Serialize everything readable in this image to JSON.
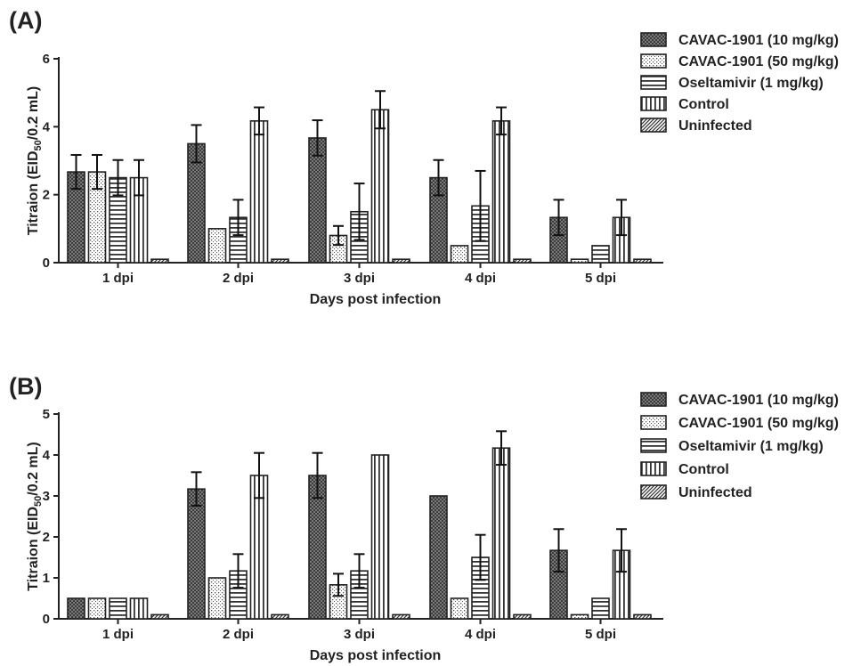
{
  "chart_data": [
    {
      "type": "bar",
      "panel_label": "(A)",
      "title": "",
      "xlabel": "Days post infection",
      "ylabel": {
        "main": "Titraion (EID",
        "sub": "50",
        "rest": "/0.2 mL)"
      },
      "ylim": [
        0,
        6
      ],
      "yticks": [
        0,
        2,
        4,
        6
      ],
      "categories": [
        "1 dpi",
        "2 dpi",
        "3 dpi",
        "4 dpi",
        "5 dpi"
      ],
      "legend_position": "top-right",
      "series": [
        {
          "name": "CAVAC-1901 (10 mg/kg)",
          "pattern": "crosshatch",
          "values": [
            2.67,
            3.5,
            3.67,
            2.5,
            1.33
          ],
          "errors": [
            0.5,
            0.55,
            0.52,
            0.52,
            0.52
          ]
        },
        {
          "name": "CAVAC-1901 (50 mg/kg)",
          "pattern": "dots",
          "values": [
            2.67,
            1.0,
            0.8,
            0.5,
            0.1
          ],
          "errors": [
            0.5,
            0,
            0.28,
            0,
            0
          ]
        },
        {
          "name": "Oseltamivir (1 mg/kg)",
          "pattern": "hlines",
          "values": [
            2.5,
            1.33,
            1.5,
            1.67,
            0.5
          ],
          "errors": [
            0.52,
            0.52,
            0.83,
            1.03,
            0
          ]
        },
        {
          "name": "Control",
          "pattern": "vlines",
          "values": [
            2.5,
            4.17,
            4.5,
            4.17,
            1.33
          ],
          "errors": [
            0.52,
            0.4,
            0.55,
            0.4,
            0.52
          ]
        },
        {
          "name": "Uninfected",
          "pattern": "diagonal",
          "values": [
            0.1,
            0.1,
            0.1,
            0.1,
            0.1
          ],
          "errors": [
            0,
            0,
            0,
            0,
            0
          ]
        }
      ]
    },
    {
      "type": "bar",
      "panel_label": "(B)",
      "title": "",
      "xlabel": "Days post infection",
      "ylabel": {
        "main": "Titraion (EID",
        "sub": "50",
        "rest": "/0.2 mL)"
      },
      "ylim": [
        0,
        5
      ],
      "yticks": [
        0,
        1,
        2,
        3,
        4,
        5
      ],
      "categories": [
        "1 dpi",
        "2 dpi",
        "3 dpi",
        "4 dpi",
        "5 dpi"
      ],
      "legend_position": "top-right",
      "series": [
        {
          "name": "CAVAC-1901 (10 mg/kg)",
          "pattern": "crosshatch",
          "values": [
            0.5,
            3.17,
            3.5,
            3.0,
            1.67
          ],
          "errors": [
            0,
            0.41,
            0.55,
            0,
            0.52
          ]
        },
        {
          "name": "CAVAC-1901 (50 mg/kg)",
          "pattern": "dots",
          "values": [
            0.5,
            1.0,
            0.83,
            0.5,
            0.1
          ],
          "errors": [
            0,
            0,
            0.27,
            0,
            0
          ]
        },
        {
          "name": "Oseltamivir (1 mg/kg)",
          "pattern": "hlines",
          "values": [
            0.5,
            1.17,
            1.17,
            1.5,
            0.5
          ],
          "errors": [
            0,
            0.41,
            0.41,
            0.55,
            0
          ]
        },
        {
          "name": "Control",
          "pattern": "vlines",
          "values": [
            0.5,
            3.5,
            4.0,
            4.17,
            1.67
          ],
          "errors": [
            0,
            0.55,
            0,
            0.41,
            0.52
          ]
        },
        {
          "name": "Uninfected",
          "pattern": "diagonal",
          "values": [
            0.1,
            0.1,
            0.1,
            0.1,
            0.1
          ],
          "errors": [
            0,
            0,
            0,
            0,
            0
          ]
        }
      ]
    }
  ]
}
